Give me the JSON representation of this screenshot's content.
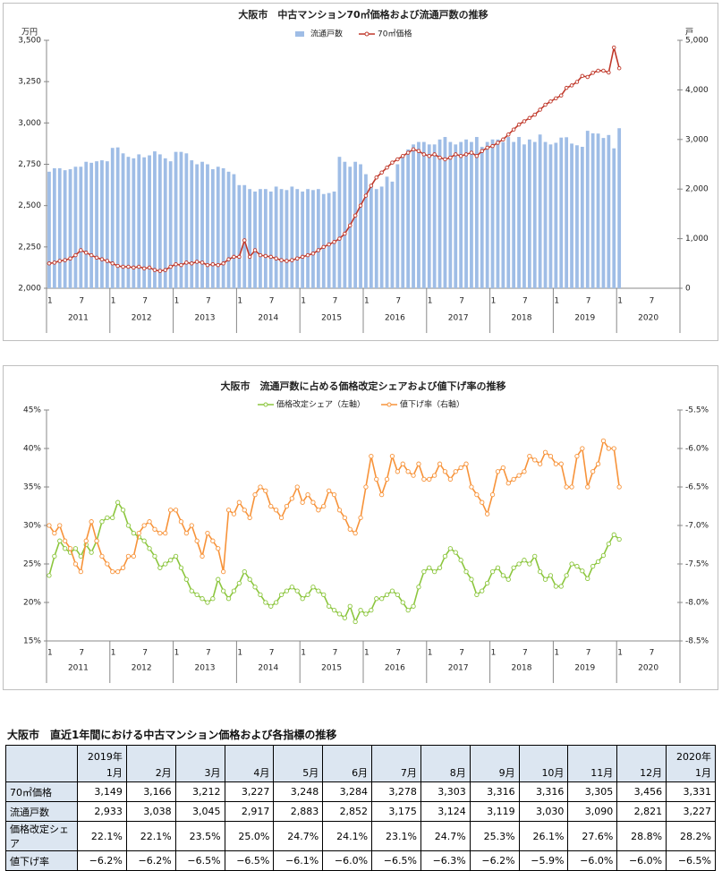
{
  "chart_data": [
    {
      "type": "combo",
      "title": "大阪市　中古マンション70㎡価格および流通戸数の推移",
      "y_unit": "万円",
      "y2_unit": "戸",
      "categories": [
        "1",
        null,
        null,
        null,
        null,
        null,
        "7",
        null,
        null,
        null,
        null,
        null,
        "1",
        null,
        null,
        null,
        null,
        null,
        "7",
        null,
        null,
        null,
        null,
        null,
        "1",
        null,
        null,
        null,
        null,
        null,
        "7",
        null,
        null,
        null,
        null,
        null,
        "1",
        null,
        null,
        null,
        null,
        null,
        "7",
        null,
        null,
        null,
        null,
        null,
        "1",
        null,
        null,
        null,
        null,
        null,
        "7",
        null,
        null,
        null,
        null,
        null,
        "1",
        null,
        null,
        null,
        null,
        null,
        "7",
        null,
        null,
        null,
        null,
        null,
        "1",
        null,
        null,
        null,
        null,
        null,
        "7",
        null,
        null,
        null,
        null,
        null,
        "1",
        null,
        null,
        null,
        null,
        null,
        "7",
        null,
        null,
        null,
        null,
        null,
        "1",
        null,
        null,
        null,
        null,
        null,
        "7",
        null,
        null,
        null,
        null,
        null,
        "1",
        null,
        null,
        null,
        null,
        null,
        "7",
        null,
        null,
        null,
        null,
        null
      ],
      "x_groups": [
        "2011",
        "2012",
        "2013",
        "2014",
        "2015",
        "2016",
        "2017",
        "2018",
        "2019",
        "2020"
      ],
      "ylim": [
        2000,
        3500
      ],
      "yticks": [
        {
          "value": 2000,
          "label": "2,000"
        },
        {
          "value": 2250,
          "label": "2,250"
        },
        {
          "value": 2500,
          "label": "2,500"
        },
        {
          "value": 2750,
          "label": "2,750"
        },
        {
          "value": 3000,
          "label": "3,000"
        },
        {
          "value": 3250,
          "label": "3,250"
        },
        {
          "value": 3500,
          "label": "3,500"
        }
      ],
      "y2lim": [
        0,
        5000
      ],
      "y2ticks": [
        0,
        {
          "value": 1000,
          "label": "1,000"
        },
        {
          "value": 2000,
          "label": "2,000"
        },
        {
          "value": 3000,
          "label": "3,000"
        },
        {
          "value": 4000,
          "label": "4,000"
        },
        {
          "value": 5000,
          "label": "5,000"
        }
      ],
      "grid": false,
      "series": [
        {
          "name": "流通戸数",
          "type": "bar",
          "axis": "y2",
          "color": "#9fbde6",
          "values": [
            2350,
            2420,
            2420,
            2380,
            2400,
            2450,
            2450,
            2550,
            2530,
            2560,
            2580,
            2560,
            2830,
            2840,
            2720,
            2650,
            2620,
            2700,
            2640,
            2680,
            2760,
            2700,
            2620,
            2560,
            2750,
            2750,
            2720,
            2580,
            2500,
            2550,
            2500,
            2400,
            2450,
            2420,
            2350,
            2300,
            2080,
            2080,
            2000,
            1950,
            2000,
            2000,
            1950,
            2050,
            2000,
            1980,
            2050,
            2000,
            1950,
            2000,
            1980,
            2000,
            1900,
            1920,
            1950,
            2650,
            2550,
            2450,
            2550,
            2500,
            2300,
            2100,
            2000,
            2050,
            2250,
            2150,
            2500,
            2650,
            2800,
            2900,
            2950,
            2950,
            2900,
            2900,
            3000,
            3050,
            2950,
            2900,
            2950,
            3000,
            2950,
            3050,
            2850,
            2950,
            3000,
            3000,
            2950,
            3050,
            2950,
            3050,
            2900,
            3000,
            2950,
            3100,
            2950,
            2900,
            2933,
            3038,
            3045,
            2917,
            2883,
            2852,
            3175,
            3124,
            3119,
            3030,
            3090,
            2821,
            3227,
            null,
            null,
            null,
            null,
            null,
            null,
            null,
            null,
            null,
            null,
            null
          ]
        },
        {
          "name": "70㎡価格",
          "type": "line",
          "axis": "y",
          "color": "#c0392b",
          "values": [
            2150,
            2155,
            2165,
            2170,
            2180,
            2200,
            2230,
            2215,
            2200,
            2185,
            2175,
            2165,
            2150,
            2135,
            2130,
            2130,
            2125,
            2130,
            2120,
            2125,
            2110,
            2105,
            2110,
            2130,
            2145,
            2140,
            2155,
            2150,
            2160,
            2155,
            2140,
            2145,
            2140,
            2150,
            2175,
            2190,
            2190,
            2290,
            2190,
            2230,
            2200,
            2195,
            2190,
            2180,
            2170,
            2165,
            2170,
            2180,
            2190,
            2200,
            2210,
            2230,
            2250,
            2265,
            2280,
            2300,
            2330,
            2380,
            2440,
            2500,
            2560,
            2620,
            2670,
            2700,
            2730,
            2760,
            2780,
            2800,
            2820,
            2840,
            2830,
            2810,
            2800,
            2810,
            2790,
            2780,
            2790,
            2810,
            2800,
            2810,
            2820,
            2800,
            2830,
            2850,
            2860,
            2880,
            2900,
            2930,
            2960,
            2990,
            3010,
            3030,
            3050,
            3080,
            3110,
            3130,
            3149,
            3166,
            3212,
            3227,
            3248,
            3284,
            3278,
            3303,
            3316,
            3316,
            3305,
            3456,
            3331,
            null,
            null,
            null,
            null,
            null,
            null,
            null,
            null,
            null,
            null,
            null
          ]
        }
      ]
    },
    {
      "type": "line",
      "title": "大阪市　流通戸数に占める価格改定シェアおよび値下げ率の推移",
      "categories": [
        "1",
        null,
        null,
        null,
        null,
        null,
        "7",
        null,
        null,
        null,
        null,
        null,
        "1",
        null,
        null,
        null,
        null,
        null,
        "7",
        null,
        null,
        null,
        null,
        null,
        "1",
        null,
        null,
        null,
        null,
        null,
        "7",
        null,
        null,
        null,
        null,
        null,
        "1",
        null,
        null,
        null,
        null,
        null,
        "7",
        null,
        null,
        null,
        null,
        null,
        "1",
        null,
        null,
        null,
        null,
        null,
        "7",
        null,
        null,
        null,
        null,
        null,
        "1",
        null,
        null,
        null,
        null,
        null,
        "7",
        null,
        null,
        null,
        null,
        null,
        "1",
        null,
        null,
        null,
        null,
        null,
        "7",
        null,
        null,
        null,
        null,
        null,
        "1",
        null,
        null,
        null,
        null,
        null,
        "7",
        null,
        null,
        null,
        null,
        null,
        "1",
        null,
        null,
        null,
        null,
        null,
        "7",
        null,
        null,
        null,
        null,
        null,
        "1",
        null,
        null,
        null,
        null,
        null,
        "7",
        null,
        null,
        null,
        null,
        null
      ],
      "x_groups": [
        "2011",
        "2012",
        "2013",
        "2014",
        "2015",
        "2016",
        "2017",
        "2018",
        "2019",
        "2020"
      ],
      "ylim": [
        15,
        45
      ],
      "yticks": [
        {
          "value": 15,
          "label": "15%"
        },
        {
          "value": 20,
          "label": "20%"
        },
        {
          "value": 25,
          "label": "25%"
        },
        {
          "value": 30,
          "label": "30%"
        },
        {
          "value": 35,
          "label": "35%"
        },
        {
          "value": 40,
          "label": "40%"
        },
        {
          "value": 45,
          "label": "45%"
        }
      ],
      "y2lim": [
        -8.5,
        -5.5
      ],
      "y2ticks": [
        {
          "value": -8.5,
          "label": "-8.5%"
        },
        {
          "value": -8.0,
          "label": "-8.0%"
        },
        {
          "value": -7.5,
          "label": "-7.5%"
        },
        {
          "value": -7.0,
          "label": "-7.0%"
        },
        {
          "value": -6.5,
          "label": "-6.5%"
        },
        {
          "value": -6.0,
          "label": "-6.0%"
        },
        {
          "value": -5.5,
          "label": "-5.5%"
        }
      ],
      "grid": false,
      "series": [
        {
          "name": "価格改定シェア（左軸）",
          "type": "line",
          "axis": "y",
          "color": "#8cc63e",
          "values": [
            23.5,
            26,
            28,
            27,
            26.5,
            27,
            26,
            27.5,
            26.5,
            28,
            30.5,
            31,
            31,
            33,
            32,
            30,
            29,
            28.5,
            28,
            27,
            26,
            24.5,
            25,
            25.5,
            26,
            24.5,
            23,
            21.5,
            21,
            20.5,
            20,
            20.5,
            23,
            21.5,
            20.5,
            21.5,
            22.5,
            24,
            23,
            22,
            21,
            20,
            19.5,
            20,
            21,
            21.5,
            22,
            21.5,
            20.5,
            21,
            22,
            21.5,
            21,
            19.5,
            19,
            18.5,
            18,
            19.5,
            17.5,
            19,
            18.5,
            19,
            20.5,
            20.5,
            21,
            21.5,
            21,
            20,
            19,
            19.5,
            22,
            24,
            24.5,
            24,
            24.5,
            26,
            27,
            26.5,
            25.5,
            24,
            23,
            21,
            21.5,
            22.5,
            24,
            24.5,
            23.5,
            23,
            24.5,
            25,
            25.5,
            25,
            26,
            24,
            23,
            23.5,
            22.1,
            22.1,
            23.5,
            25.0,
            24.7,
            24.1,
            23.1,
            24.7,
            25.3,
            26.1,
            27.6,
            28.8,
            28.2,
            null,
            null,
            null,
            null,
            null,
            null,
            null,
            null,
            null,
            null,
            null
          ]
        },
        {
          "name": "値下げ率（右軸）",
          "type": "line",
          "axis": "y2",
          "color": "#f7933a",
          "values": [
            -7.0,
            -7.1,
            -7.0,
            -7.2,
            -7.3,
            -7.5,
            -7.6,
            -7.2,
            -6.95,
            -7.2,
            -7.4,
            -7.5,
            -7.6,
            -7.6,
            -7.55,
            -7.4,
            -7.4,
            -7.1,
            -7.0,
            -6.95,
            -7.05,
            -7.1,
            -7.1,
            -6.8,
            -6.8,
            -6.95,
            -7.1,
            -7.0,
            -7.2,
            -7.4,
            -7.1,
            -7.2,
            -7.3,
            -7.6,
            -6.8,
            -6.85,
            -6.7,
            -6.8,
            -6.9,
            -6.6,
            -6.5,
            -6.55,
            -6.75,
            -6.8,
            -6.9,
            -6.75,
            -6.65,
            -6.5,
            -6.7,
            -6.6,
            -6.7,
            -6.8,
            -6.75,
            -6.55,
            -6.6,
            -6.8,
            -6.9,
            -7.05,
            -7.1,
            -6.9,
            -6.5,
            -6.1,
            -6.4,
            -6.6,
            -6.4,
            -6.1,
            -6.3,
            -6.2,
            -6.3,
            -6.35,
            -6.2,
            -6.4,
            -6.4,
            -6.35,
            -6.2,
            -6.3,
            -6.4,
            -6.3,
            -6.25,
            -6.2,
            -6.5,
            -6.6,
            -6.7,
            -6.85,
            -6.6,
            -6.3,
            -6.25,
            -6.45,
            -6.4,
            -6.35,
            -6.3,
            -6.1,
            -6.15,
            -6.2,
            -6.05,
            -6.1,
            -6.2,
            -6.2,
            -6.5,
            -6.5,
            -6.1,
            -6.0,
            -6.5,
            -6.3,
            -6.2,
            -5.9,
            -6.0,
            -6.0,
            -6.5,
            null,
            null,
            null,
            null,
            null,
            null,
            null,
            null,
            null,
            null,
            null
          ]
        }
      ]
    }
  ],
  "table": {
    "title": "大阪市　直近1年間における中古マンション価格および各指標の推移",
    "header": [
      {
        "year": "2019年",
        "month": "1月"
      },
      {
        "month": "2月"
      },
      {
        "month": "3月"
      },
      {
        "month": "4月"
      },
      {
        "month": "5月"
      },
      {
        "month": "6月"
      },
      {
        "month": "7月"
      },
      {
        "month": "8月"
      },
      {
        "month": "9月"
      },
      {
        "month": "10月"
      },
      {
        "month": "11月"
      },
      {
        "month": "12月"
      },
      {
        "year": "2020年",
        "month": "1月"
      }
    ],
    "rows": [
      [
        "70㎡価格",
        "3,149",
        "3,166",
        "3,212",
        "3,227",
        "3,248",
        "3,284",
        "3,278",
        "3,303",
        "3,316",
        "3,316",
        "3,305",
        "3,456",
        "3,331"
      ],
      [
        "流通戸数",
        "2,933",
        "3,038",
        "3,045",
        "2,917",
        "2,883",
        "2,852",
        "3,175",
        "3,124",
        "3,119",
        "3,030",
        "3,090",
        "2,821",
        "3,227"
      ],
      [
        "価格改定シェア",
        "22.1%",
        "22.1%",
        "23.5%",
        "25.0%",
        "24.7%",
        "24.1%",
        "23.1%",
        "24.7%",
        "25.3%",
        "26.1%",
        "27.6%",
        "28.8%",
        "28.2%"
      ],
      [
        "値下げ率",
        "−6.2%",
        "−6.2%",
        "−6.5%",
        "−6.5%",
        "−6.1%",
        "−6.0%",
        "−6.5%",
        "−6.3%",
        "−6.2%",
        "−5.9%",
        "−6.0%",
        "−6.0%",
        "−6.5%"
      ]
    ]
  }
}
